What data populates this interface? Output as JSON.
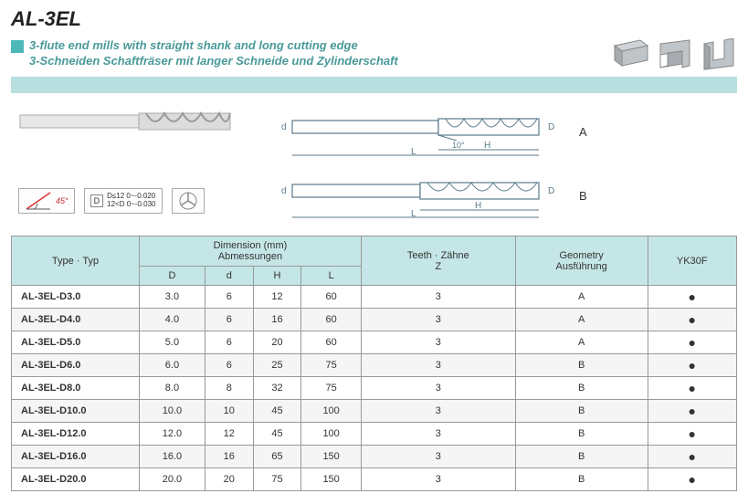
{
  "title": "AL-3EL",
  "subtitle_en": "3-flute end mills with straight shank and long cutting edge",
  "subtitle_de": "3-Schneiden Schaftfräser mit langer Schneide und Zylinderschaft",
  "badges": {
    "angle": "45°",
    "tol_label": "D",
    "tol_line1": "D≤12  0~-0.020",
    "tol_line2": "12<D  0~-0.030"
  },
  "tech_labels": {
    "a": "A",
    "b": "B",
    "d_small": "d",
    "D_big": "D",
    "H": "H",
    "L": "L",
    "angle": "10°"
  },
  "table": {
    "headers": {
      "type": "Type · Typ",
      "dim_top": "Dimension (mm)",
      "dim_sub": "Abmessungen",
      "D": "D",
      "d": "d",
      "H": "H",
      "L": "L",
      "teeth": "Teeth · Zähne",
      "teeth_sub": "Z",
      "geom": "Geometry",
      "geom_sub": "Ausführung",
      "grade": "YK30F"
    },
    "rows": [
      {
        "type": "AL-3EL-D3.0",
        "D": "3.0",
        "d": "6",
        "H": "12",
        "L": "60",
        "Z": "3",
        "G": "A"
      },
      {
        "type": "AL-3EL-D4.0",
        "D": "4.0",
        "d": "6",
        "H": "16",
        "L": "60",
        "Z": "3",
        "G": "A"
      },
      {
        "type": "AL-3EL-D5.0",
        "D": "5.0",
        "d": "6",
        "H": "20",
        "L": "60",
        "Z": "3",
        "G": "A"
      },
      {
        "type": "AL-3EL-D6.0",
        "D": "6.0",
        "d": "6",
        "H": "25",
        "L": "75",
        "Z": "3",
        "G": "B"
      },
      {
        "type": "AL-3EL-D8.0",
        "D": "8.0",
        "d": "8",
        "H": "32",
        "L": "75",
        "Z": "3",
        "G": "B"
      },
      {
        "type": "AL-3EL-D10.0",
        "D": "10.0",
        "d": "10",
        "H": "45",
        "L": "100",
        "Z": "3",
        "G": "B"
      },
      {
        "type": "AL-3EL-D12.0",
        "D": "12.0",
        "d": "12",
        "H": "45",
        "L": "100",
        "Z": "3",
        "G": "B"
      },
      {
        "type": "AL-3EL-D16.0",
        "D": "16.0",
        "d": "16",
        "H": "65",
        "L": "150",
        "Z": "3",
        "G": "B"
      },
      {
        "type": "AL-3EL-D20.0",
        "D": "20.0",
        "d": "20",
        "H": "75",
        "L": "150",
        "Z": "3",
        "G": "B"
      }
    ]
  },
  "colors": {
    "teal": "#4db8b8",
    "header_bg": "#c5e6e6",
    "bar": "#b8dfe0"
  }
}
